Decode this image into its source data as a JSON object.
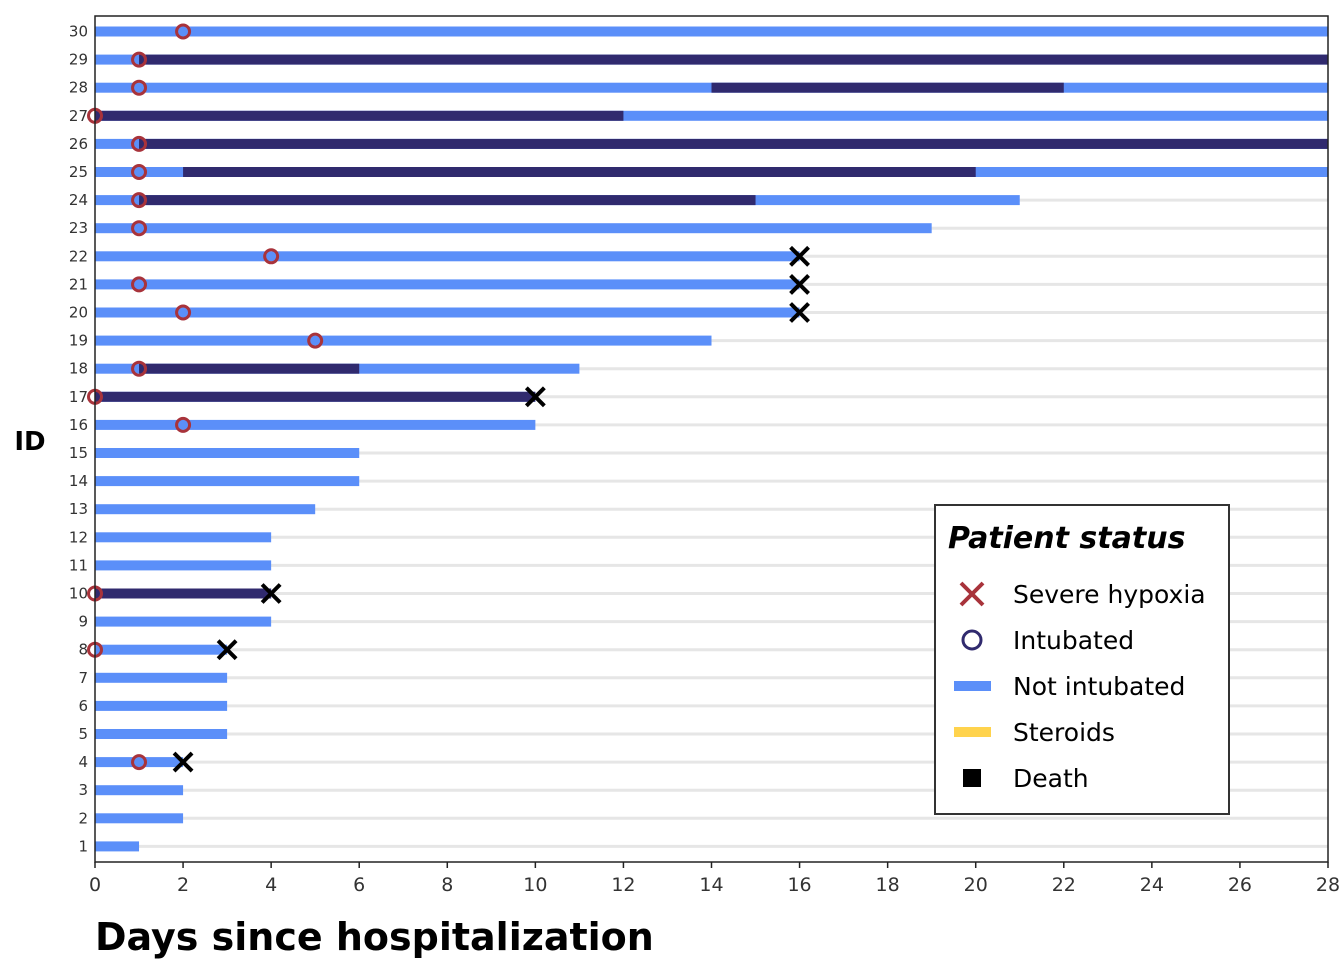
{
  "chart_data": {
    "type": "swimmer",
    "xlabel": "Days since hospitalization",
    "ylabel": "ID",
    "xlim": [
      0,
      28
    ],
    "xticks": [
      0,
      2,
      4,
      6,
      8,
      10,
      12,
      14,
      16,
      18,
      20,
      22,
      24,
      26,
      28
    ],
    "ids": [
      1,
      2,
      3,
      4,
      5,
      6,
      7,
      8,
      9,
      10,
      11,
      12,
      13,
      14,
      15,
      16,
      17,
      18,
      19,
      20,
      21,
      22,
      23,
      24,
      25,
      26,
      27,
      28,
      29,
      30
    ],
    "grid": "horizontal",
    "colors": {
      "not_intubated": "#5b8ff9",
      "intubated": "#302a6e",
      "hypoxia_marker": "#a8333b",
      "death_marker": "#000000",
      "steroids": "#ffd34d",
      "grid": "#e6e6e6"
    },
    "patients": [
      {
        "id": 1,
        "end": 1,
        "intubated": [],
        "hypoxia": null,
        "death": null
      },
      {
        "id": 2,
        "end": 2,
        "intubated": [],
        "hypoxia": null,
        "death": null
      },
      {
        "id": 3,
        "end": 2,
        "intubated": [],
        "hypoxia": null,
        "death": null
      },
      {
        "id": 4,
        "end": 2,
        "intubated": [],
        "hypoxia": 1,
        "death": 2
      },
      {
        "id": 5,
        "end": 3,
        "intubated": [],
        "hypoxia": null,
        "death": null
      },
      {
        "id": 6,
        "end": 3,
        "intubated": [],
        "hypoxia": null,
        "death": null
      },
      {
        "id": 7,
        "end": 3,
        "intubated": [],
        "hypoxia": null,
        "death": null
      },
      {
        "id": 8,
        "end": 3,
        "intubated": [],
        "hypoxia": 0,
        "death": 3
      },
      {
        "id": 9,
        "end": 4,
        "intubated": [],
        "hypoxia": null,
        "death": null
      },
      {
        "id": 10,
        "end": 4,
        "intubated": [
          [
            0,
            4
          ]
        ],
        "hypoxia": 0,
        "death": 4
      },
      {
        "id": 11,
        "end": 4,
        "intubated": [],
        "hypoxia": null,
        "death": null
      },
      {
        "id": 12,
        "end": 4,
        "intubated": [],
        "hypoxia": null,
        "death": null
      },
      {
        "id": 13,
        "end": 5,
        "intubated": [],
        "hypoxia": null,
        "death": null
      },
      {
        "id": 14,
        "end": 6,
        "intubated": [],
        "hypoxia": null,
        "death": null
      },
      {
        "id": 15,
        "end": 6,
        "intubated": [],
        "hypoxia": null,
        "death": null
      },
      {
        "id": 16,
        "end": 10,
        "intubated": [],
        "hypoxia": 2,
        "death": null
      },
      {
        "id": 17,
        "end": 10,
        "intubated": [
          [
            0,
            10
          ]
        ],
        "hypoxia": 0,
        "death": 10
      },
      {
        "id": 18,
        "end": 11,
        "intubated": [
          [
            1,
            6
          ]
        ],
        "hypoxia": 1,
        "death": null
      },
      {
        "id": 19,
        "end": 14,
        "intubated": [],
        "hypoxia": 5,
        "death": null
      },
      {
        "id": 20,
        "end": 16,
        "intubated": [],
        "hypoxia": 2,
        "death": 16
      },
      {
        "id": 21,
        "end": 16,
        "intubated": [],
        "hypoxia": 1,
        "death": 16
      },
      {
        "id": 22,
        "end": 16,
        "intubated": [],
        "hypoxia": 4,
        "death": 16
      },
      {
        "id": 23,
        "end": 19,
        "intubated": [],
        "hypoxia": 1,
        "death": null
      },
      {
        "id": 24,
        "end": 21,
        "intubated": [
          [
            1,
            15
          ]
        ],
        "hypoxia": 1,
        "death": null
      },
      {
        "id": 25,
        "end": 28,
        "intubated": [
          [
            2,
            20
          ]
        ],
        "hypoxia": 1,
        "death": null
      },
      {
        "id": 26,
        "end": 28,
        "intubated": [
          [
            1,
            28
          ]
        ],
        "hypoxia": 1,
        "death": null
      },
      {
        "id": 27,
        "end": 28,
        "intubated": [
          [
            0,
            12
          ]
        ],
        "hypoxia": 0,
        "death": null
      },
      {
        "id": 28,
        "end": 28,
        "intubated": [
          [
            14,
            22
          ]
        ],
        "hypoxia": 1,
        "death": null
      },
      {
        "id": 29,
        "end": 28,
        "intubated": [
          [
            1,
            28
          ]
        ],
        "hypoxia": 1,
        "death": null
      },
      {
        "id": 30,
        "end": 28,
        "intubated": [],
        "hypoxia": 2,
        "death": null
      }
    ],
    "legend": {
      "title": "Patient status",
      "placement": "bottom-right",
      "items": [
        {
          "key": "hypoxia",
          "label": "Severe hypoxia",
          "symbol": "cross",
          "color": "#a8333b"
        },
        {
          "key": "intubated",
          "label": "Intubated",
          "symbol": "circle",
          "color": "#302a6e"
        },
        {
          "key": "not_intubated",
          "label": "Not intubated",
          "symbol": "line",
          "color": "#5b8ff9"
        },
        {
          "key": "steroids",
          "label": "Steroids",
          "symbol": "line",
          "color": "#ffd34d"
        },
        {
          "key": "death",
          "label": "Death",
          "symbol": "square",
          "color": "#000000"
        }
      ]
    }
  }
}
